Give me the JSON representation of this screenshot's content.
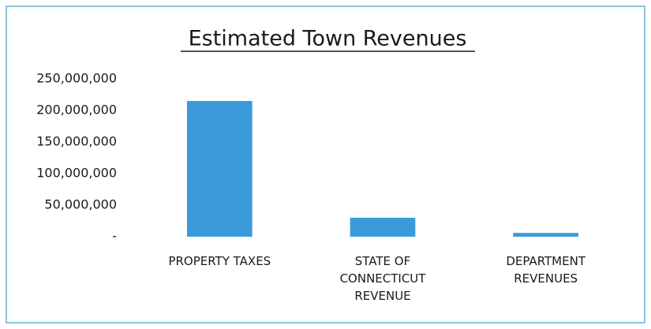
{
  "chart_data": {
    "type": "bar",
    "title": "Estimated Town Revenues",
    "categories": [
      "PROPERTY TAXES",
      "STATE OF CONNECTICUT REVENUE",
      "DEPARTMENT REVENUES"
    ],
    "values": [
      215000000,
      30000000,
      6000000
    ],
    "color": "#3b9ad9",
    "ylim": [
      0,
      250000000
    ],
    "yticks": [
      {
        "value": 0,
        "label": "-"
      },
      {
        "value": 50000000,
        "label": "50,000,000"
      },
      {
        "value": 100000000,
        "label": "100,000,000"
      },
      {
        "value": 150000000,
        "label": "150,000,000"
      },
      {
        "value": 200000000,
        "label": "200,000,000"
      },
      {
        "value": 250000000,
        "label": "250,000,000"
      }
    ],
    "grid": false
  }
}
